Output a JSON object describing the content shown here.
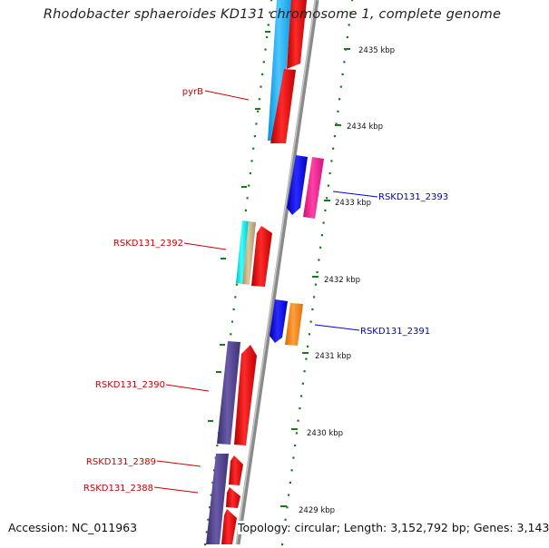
{
  "title": "Rhodobacter sphaeroides KD131 chromosome 1, complete genome",
  "accession": "Accession: NC_011963",
  "summary": "Topology: circular; Length: 3,152,792 bp; Genes: 3,143",
  "ticks": [
    "2435 kbp",
    "2434 kbp",
    "2433 kbp",
    "2432 kbp",
    "2431 kbp",
    "2430 kbp",
    "2429 kbp"
  ],
  "gene_labels": {
    "pyrB": "pyrB",
    "rskd2393": "RSKD131_2393",
    "rskd2392": "RSKD131_2392",
    "rskd2391": "RSKD131_2391",
    "rskd2390": "RSKD131_2390",
    "rskd2389": "RSKD131_2389",
    "rskd2388": "RSKD131_2388"
  },
  "colors": {
    "red": "#ff0000",
    "light_blue": "#1eb4ff",
    "dark_blue": "#1414e6",
    "magenta": "#ff1e96",
    "cyan": "#00f0f0",
    "tan": "#c8b48c",
    "orange": "#ff8c14",
    "purple": "#50418c",
    "green_dots": "#1a7a1a",
    "backbone": "#7f7f7f",
    "label_red": "#cc0000",
    "label_blue": "#0000cc"
  }
}
